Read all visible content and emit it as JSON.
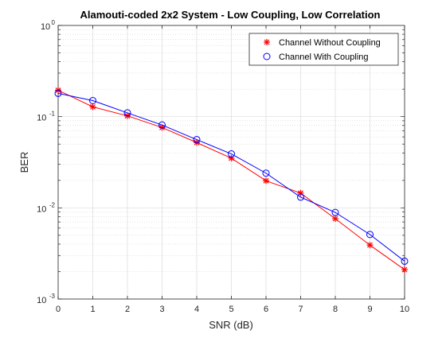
{
  "chart_data": {
    "type": "line",
    "title": "Alamouti-coded 2x2 System - Low Coupling, Low Correlation",
    "xlabel": "SNR (dB)",
    "ylabel": "BER",
    "xlim": [
      0,
      10
    ],
    "ylim": [
      0.001,
      1
    ],
    "yscale": "log",
    "grid": true,
    "minor_grid": true,
    "legend_position": "top-right",
    "x_ticks": [
      "0",
      "1",
      "2",
      "3",
      "4",
      "5",
      "6",
      "7",
      "8",
      "9",
      "10"
    ],
    "y_ticks": [
      {
        "value": 1,
        "base": "10",
        "exp": "0"
      },
      {
        "value": 0.1,
        "base": "10",
        "exp": "-1"
      },
      {
        "value": 0.01,
        "base": "10",
        "exp": "-2"
      },
      {
        "value": 0.001,
        "base": "10",
        "exp": "-3"
      }
    ],
    "x": [
      0,
      1,
      2,
      3,
      4,
      5,
      6,
      7,
      8,
      9,
      10
    ],
    "series": [
      {
        "name": "Channel Without Coupling",
        "color": "#ff0000",
        "marker": "asterisk",
        "values": [
          0.195,
          0.128,
          0.102,
          0.076,
          0.052,
          0.035,
          0.0198,
          0.0145,
          0.0076,
          0.0039,
          0.0021
        ]
      },
      {
        "name": "Channel With Coupling",
        "color": "#0000ff",
        "marker": "circle",
        "values": [
          0.18,
          0.15,
          0.11,
          0.081,
          0.056,
          0.039,
          0.024,
          0.0131,
          0.0089,
          0.0051,
          0.0026
        ]
      }
    ]
  }
}
